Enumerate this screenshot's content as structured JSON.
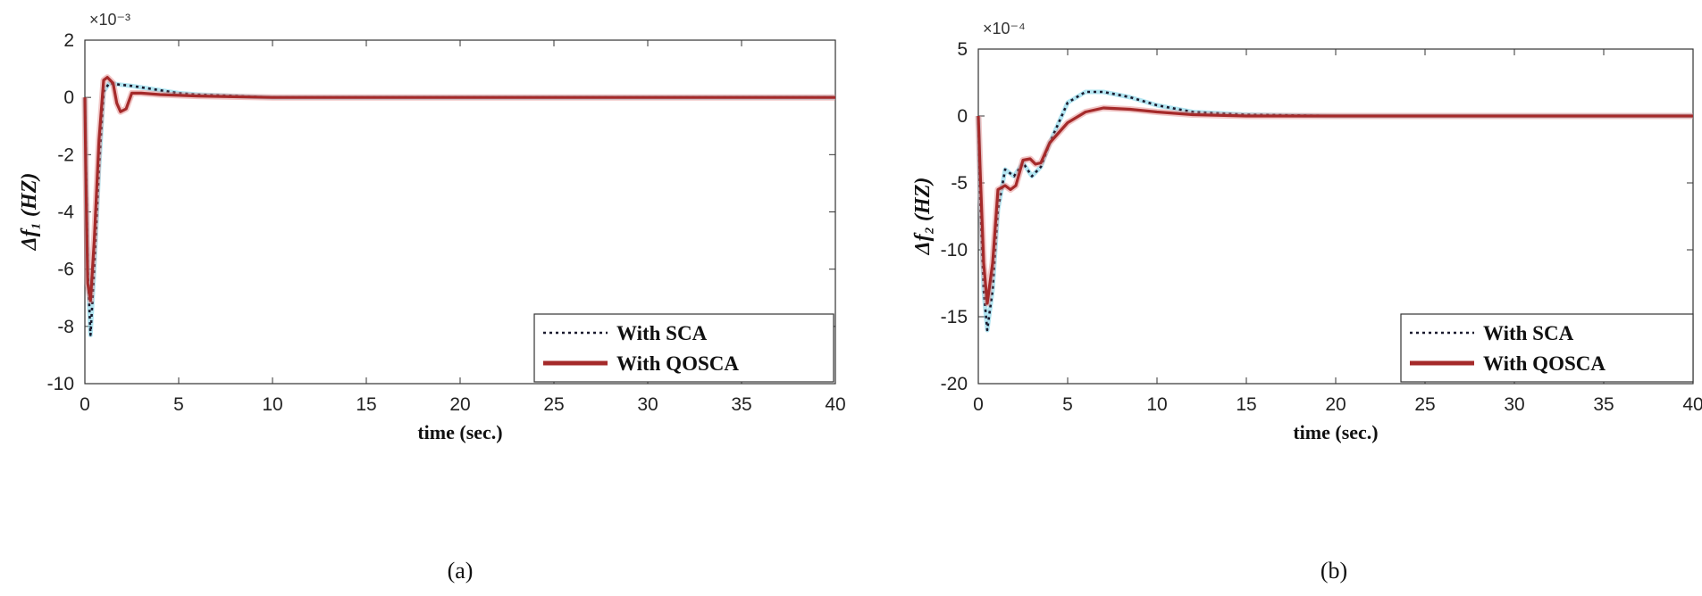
{
  "chart_data": [
    {
      "type": "line",
      "panel": "a",
      "caption": "(a)",
      "ylabel": "Δf₁ (HZ)",
      "xlabel": "time (sec.)",
      "multiplier": "×10⁻³",
      "xlim": [
        0,
        40
      ],
      "ylim": [
        -10,
        2
      ],
      "xticks": [
        0,
        5,
        10,
        15,
        20,
        25,
        30,
        35,
        40
      ],
      "yticks": [
        2,
        0,
        -2,
        -4,
        -6,
        -8,
        -10
      ],
      "ytick_labels": [
        "2",
        "0",
        "-2",
        "-4",
        "-6",
        "-8",
        "-10"
      ],
      "legend_position": "lower-right",
      "series": [
        {
          "name": "With SCA",
          "style": "dotted",
          "color": "#1a1a2e",
          "x": [
            0,
            0.05,
            0.15,
            0.3,
            0.5,
            0.75,
            1.0,
            1.3,
            1.8,
            2.5,
            3.5,
            5,
            6,
            8,
            10,
            15,
            20,
            30,
            40
          ],
          "y": [
            0,
            -2.0,
            -6.0,
            -8.3,
            -6.0,
            -2.5,
            0.2,
            0.5,
            0.45,
            0.4,
            0.3,
            0.15,
            0.1,
            0.05,
            0,
            0,
            0,
            0,
            0
          ]
        },
        {
          "name": "With QOSCA",
          "style": "solid",
          "color": "#a52a2a",
          "x": [
            0,
            0.05,
            0.15,
            0.3,
            0.5,
            0.75,
            1.0,
            1.2,
            1.5,
            1.7,
            1.9,
            2.2,
            2.5,
            3,
            4,
            6,
            10,
            20,
            40
          ],
          "y": [
            0,
            -2.5,
            -6.5,
            -7.1,
            -5.0,
            -1.5,
            0.6,
            0.7,
            0.5,
            -0.2,
            -0.5,
            -0.4,
            0.15,
            0.15,
            0.1,
            0.05,
            0,
            0,
            0
          ]
        }
      ]
    },
    {
      "type": "line",
      "panel": "b",
      "caption": "(b)",
      "ylabel": "Δf₂ (HZ)",
      "xlabel": "time (sec.)",
      "multiplier": "×10⁻⁴",
      "xlim": [
        0,
        40
      ],
      "ylim": [
        -20,
        5
      ],
      "xticks": [
        0,
        5,
        10,
        15,
        20,
        25,
        30,
        35,
        40
      ],
      "yticks": [
        5,
        0,
        -5,
        -10,
        -15,
        -20
      ],
      "ytick_labels": [
        "5",
        "0",
        "-5",
        "-10",
        "-15",
        "-20"
      ],
      "legend_position": "lower-right",
      "series": [
        {
          "name": "With SCA",
          "style": "dotted",
          "color": "#1a1a2e",
          "x": [
            0,
            0.1,
            0.3,
            0.5,
            0.8,
            1.1,
            1.5,
            2.0,
            2.5,
            3.0,
            3.5,
            4.0,
            5.0,
            6.0,
            7.0,
            8.5,
            10,
            12,
            15,
            20,
            25,
            30,
            40
          ],
          "y": [
            0,
            -6,
            -13,
            -16,
            -13,
            -7,
            -4,
            -4.5,
            -3.5,
            -4.5,
            -3.8,
            -2.0,
            1.0,
            1.8,
            1.8,
            1.4,
            0.8,
            0.3,
            0.1,
            0,
            0,
            0,
            0
          ]
        },
        {
          "name": "With QOSCA",
          "style": "solid",
          "color": "#a52a2a",
          "x": [
            0,
            0.1,
            0.3,
            0.5,
            0.8,
            1.1,
            1.5,
            1.8,
            2.1,
            2.5,
            2.9,
            3.2,
            3.5,
            4.0,
            5.0,
            6.0,
            7.0,
            8.5,
            10,
            12,
            15,
            20,
            25,
            30,
            40
          ],
          "y": [
            0,
            -4,
            -11,
            -14,
            -11,
            -5.5,
            -5.2,
            -5.5,
            -5.2,
            -3.3,
            -3.2,
            -3.6,
            -3.5,
            -2.0,
            -0.5,
            0.3,
            0.6,
            0.5,
            0.3,
            0.1,
            0,
            0,
            0,
            0,
            0
          ]
        }
      ]
    }
  ]
}
